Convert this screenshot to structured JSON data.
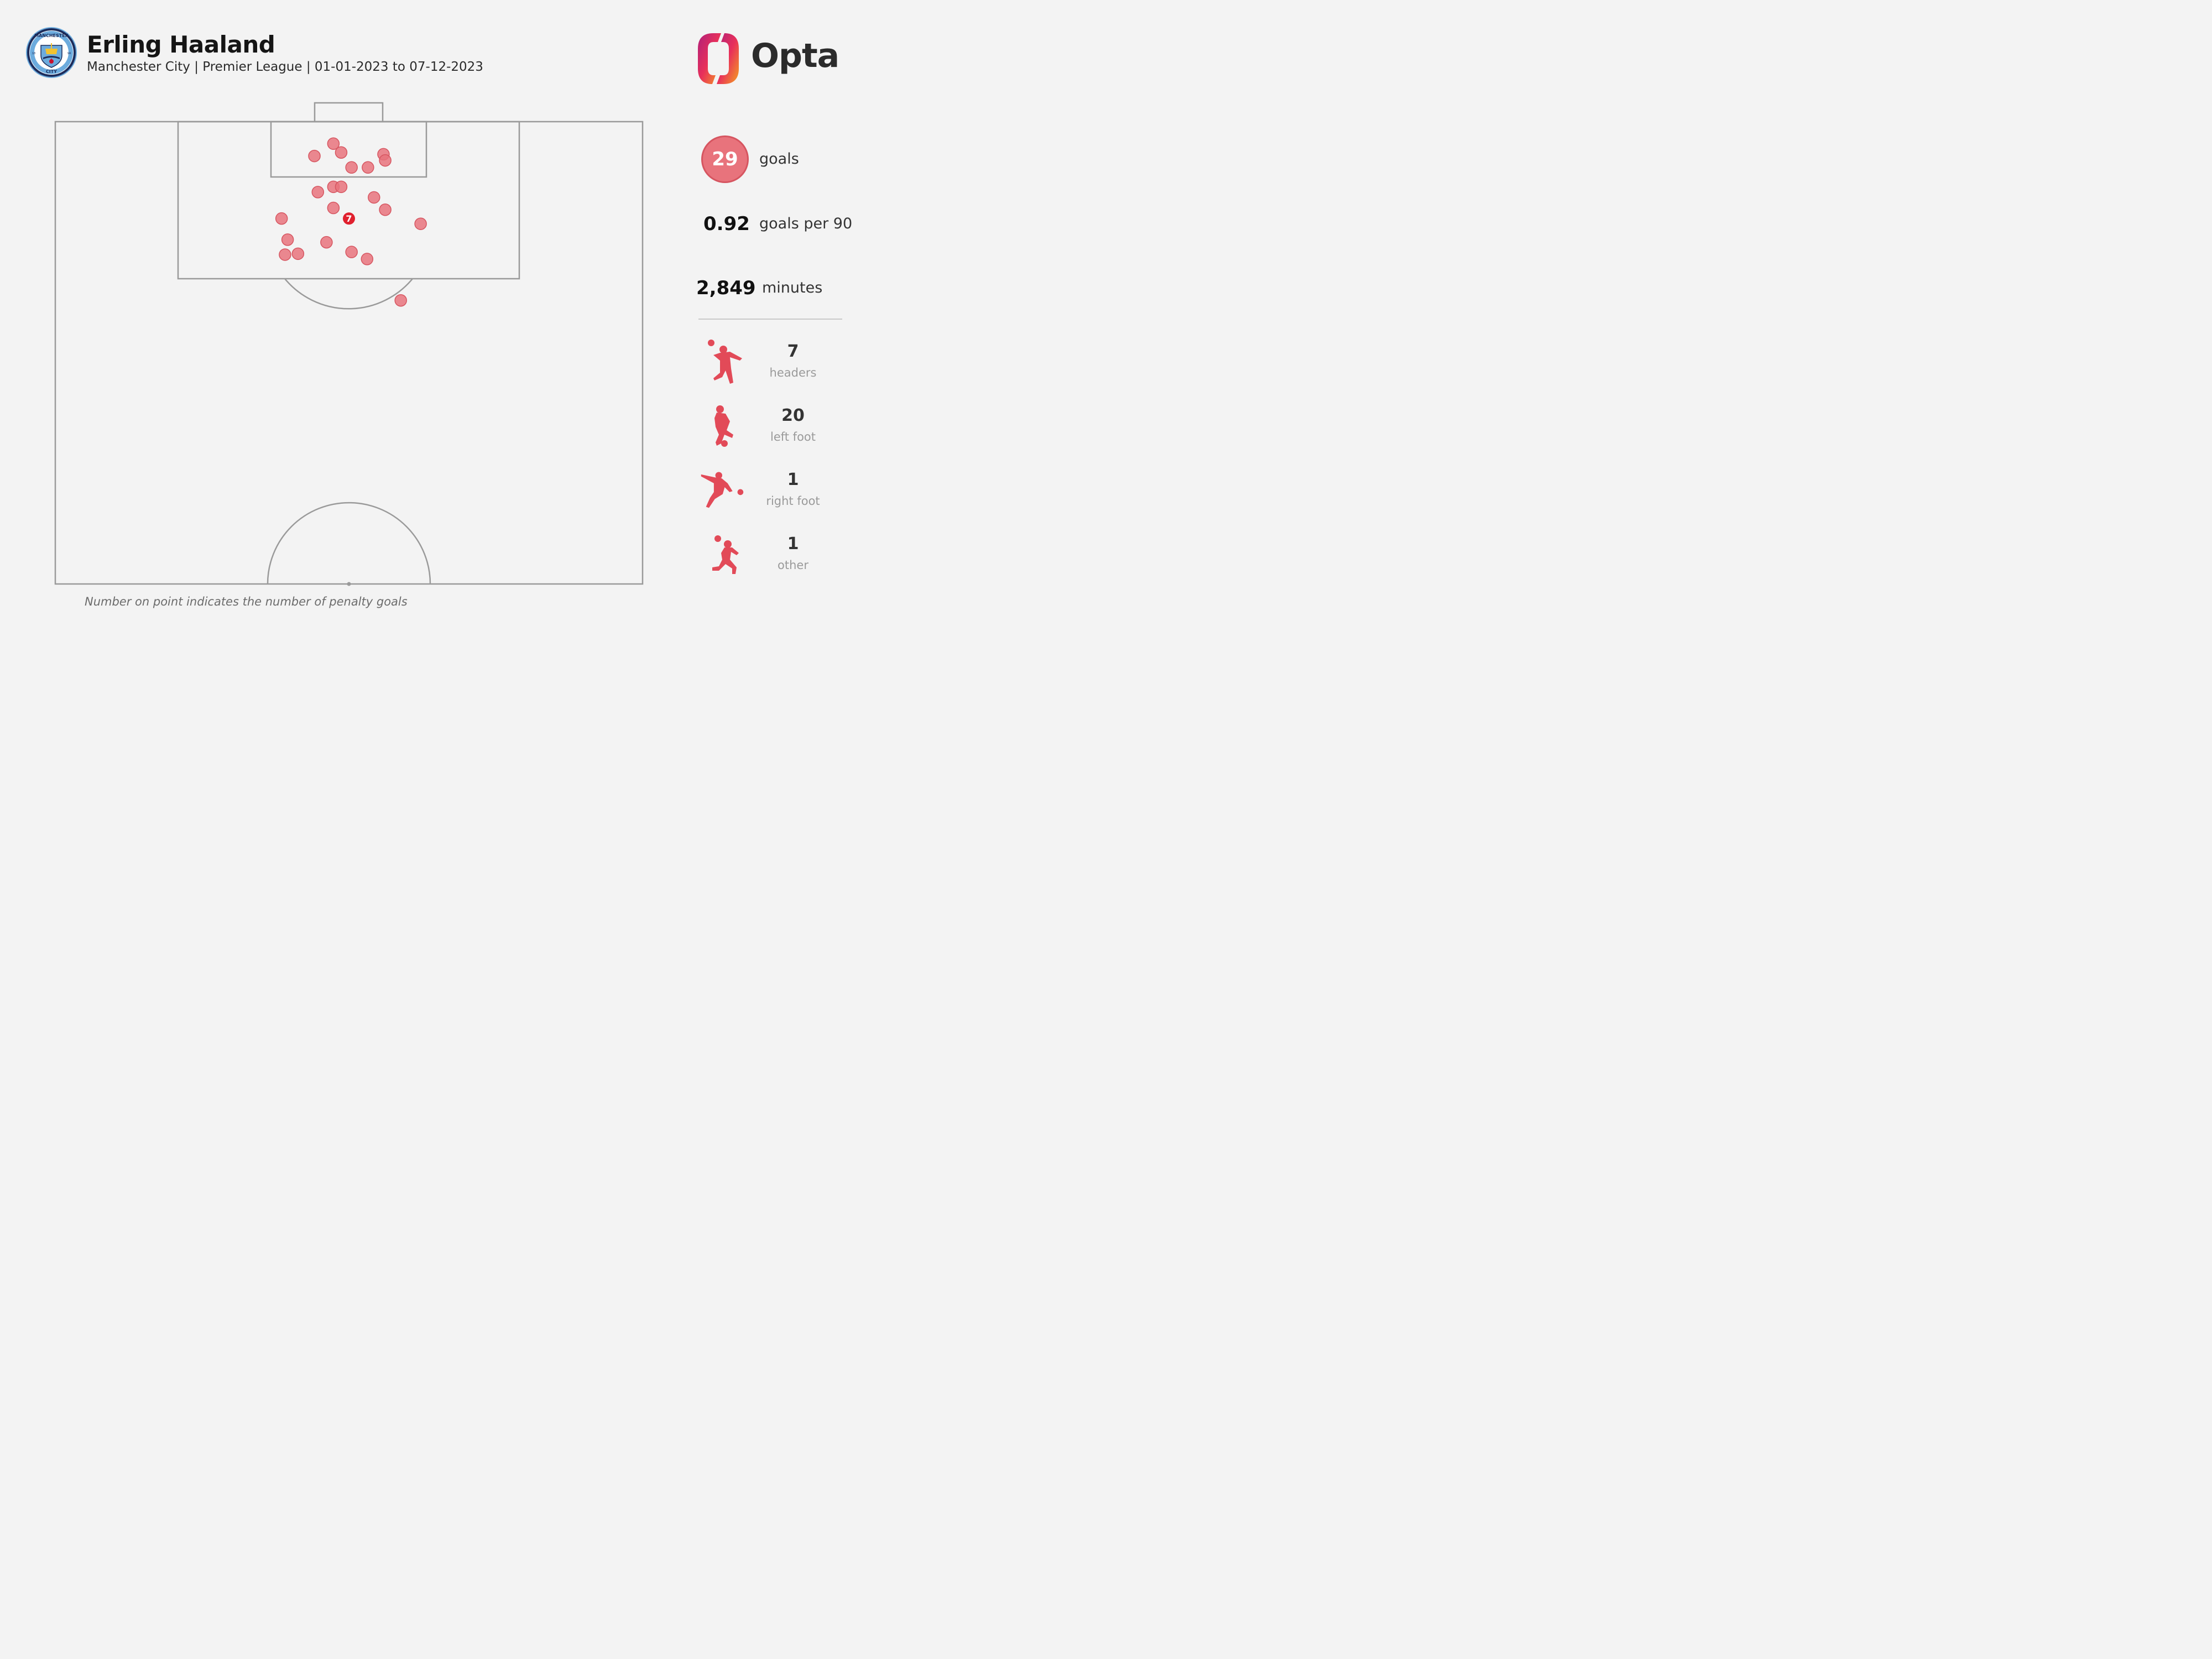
{
  "header": {
    "player_name": "Erling Haaland",
    "subtitle": "Manchester City | Premier League | 01-01-2023 to 07-12-2023",
    "crest_text_top": "MANCHESTER",
    "crest_text_bottom": "CITY",
    "crest_year_left": "18",
    "crest_year_right": "94",
    "brand": "Opta"
  },
  "stats": {
    "goals_value": "29",
    "goals_label": "goals",
    "per90_value": "0.92",
    "per90_label": "goals per 90",
    "minutes_value": "2,849",
    "minutes_label": "minutes"
  },
  "goal_types": [
    {
      "count": "7",
      "label": "headers",
      "icon": "header-player-icon"
    },
    {
      "count": "20",
      "label": "left foot",
      "icon": "left-foot-player-icon"
    },
    {
      "count": "1",
      "label": "right foot",
      "icon": "right-foot-player-icon"
    },
    {
      "count": "1",
      "label": "other",
      "icon": "other-player-icon"
    }
  ],
  "footnote": "Number on point indicates the number of penalty goals",
  "colors": {
    "goal_marker": "#e8737c",
    "goal_marker_stroke": "#d65560",
    "penalty_marker": "#e0202e",
    "pitch_lines": "#9a9a9a",
    "background": "#f3f3f3"
  },
  "chart_data": {
    "type": "scatter",
    "description_units": "pitch coordinates in metres: x across pitch width (0-68, 34 = centre), y distance from goal line",
    "x_range": [
      0,
      68
    ],
    "y_range": [
      0,
      52.5
    ],
    "points": [
      {
        "x": 32.2,
        "y": 2.5
      },
      {
        "x": 30.0,
        "y": 3.9
      },
      {
        "x": 33.1,
        "y": 3.5
      },
      {
        "x": 38.0,
        "y": 3.7
      },
      {
        "x": 38.2,
        "y": 4.4
      },
      {
        "x": 34.3,
        "y": 5.2
      },
      {
        "x": 36.2,
        "y": 5.2
      },
      {
        "x": 30.4,
        "y": 8.0
      },
      {
        "x": 32.2,
        "y": 7.4
      },
      {
        "x": 33.1,
        "y": 7.4
      },
      {
        "x": 36.9,
        "y": 8.6
      },
      {
        "x": 32.2,
        "y": 9.8
      },
      {
        "x": 38.2,
        "y": 10.0
      },
      {
        "x": 26.2,
        "y": 11.0
      },
      {
        "x": 42.3,
        "y": 11.6
      },
      {
        "x": 26.9,
        "y": 13.4
      },
      {
        "x": 31.4,
        "y": 13.7
      },
      {
        "x": 26.6,
        "y": 15.1
      },
      {
        "x": 28.1,
        "y": 15.0
      },
      {
        "x": 34.3,
        "y": 14.8
      },
      {
        "x": 36.1,
        "y": 15.6
      },
      {
        "x": 40.0,
        "y": 20.3
      }
    ],
    "penalty_points": [
      {
        "x": 34.0,
        "y": 11.0,
        "goals": 7
      }
    ]
  }
}
